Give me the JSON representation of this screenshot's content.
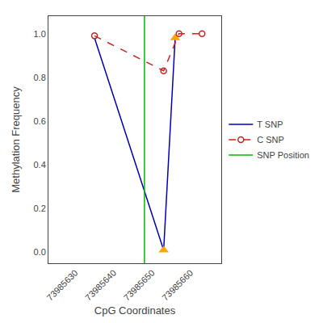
{
  "chart_data": {
    "type": "line",
    "xlabel": "CpG Coordinates",
    "ylabel": "Methylation Frequency",
    "xlim": [
      73985623,
      73985668
    ],
    "ylim": [
      -0.05,
      1.08
    ],
    "xticks": [
      73985630,
      73985640,
      73985650,
      73985660
    ],
    "yticks": [
      {
        "value": 0.0,
        "label": "0.0"
      },
      0.2,
      0.4,
      0.6,
      0.8,
      {
        "value": 1.0,
        "label": "1.0"
      }
    ],
    "grid": false,
    "legend": "right",
    "series": [
      {
        "name": "T SNP",
        "type": "line",
        "color": "#0000BB",
        "line_style": "solid",
        "x": [
          73985635,
          73985653,
          73985656
        ],
        "values": [
          0.98,
          0.01,
          0.98
        ]
      },
      {
        "type": "scatter",
        "color": "#FFA500",
        "marker": "triangle-up",
        "x": [
          73985653,
          73985656
        ],
        "values": [
          0.01,
          0.98
        ]
      },
      {
        "name": "C SNP",
        "type": "line",
        "color": "#CC2222",
        "line_style": "dashed",
        "marker": "circle-open",
        "x": [
          73985635,
          73985653,
          73985657,
          73985663
        ],
        "values": [
          0.99,
          0.83,
          1.0,
          1.0
        ]
      },
      {
        "name": "SNP Position",
        "type": "vline",
        "color": "#00BB00",
        "line_style": "solid",
        "x": 73985648
      }
    ]
  }
}
